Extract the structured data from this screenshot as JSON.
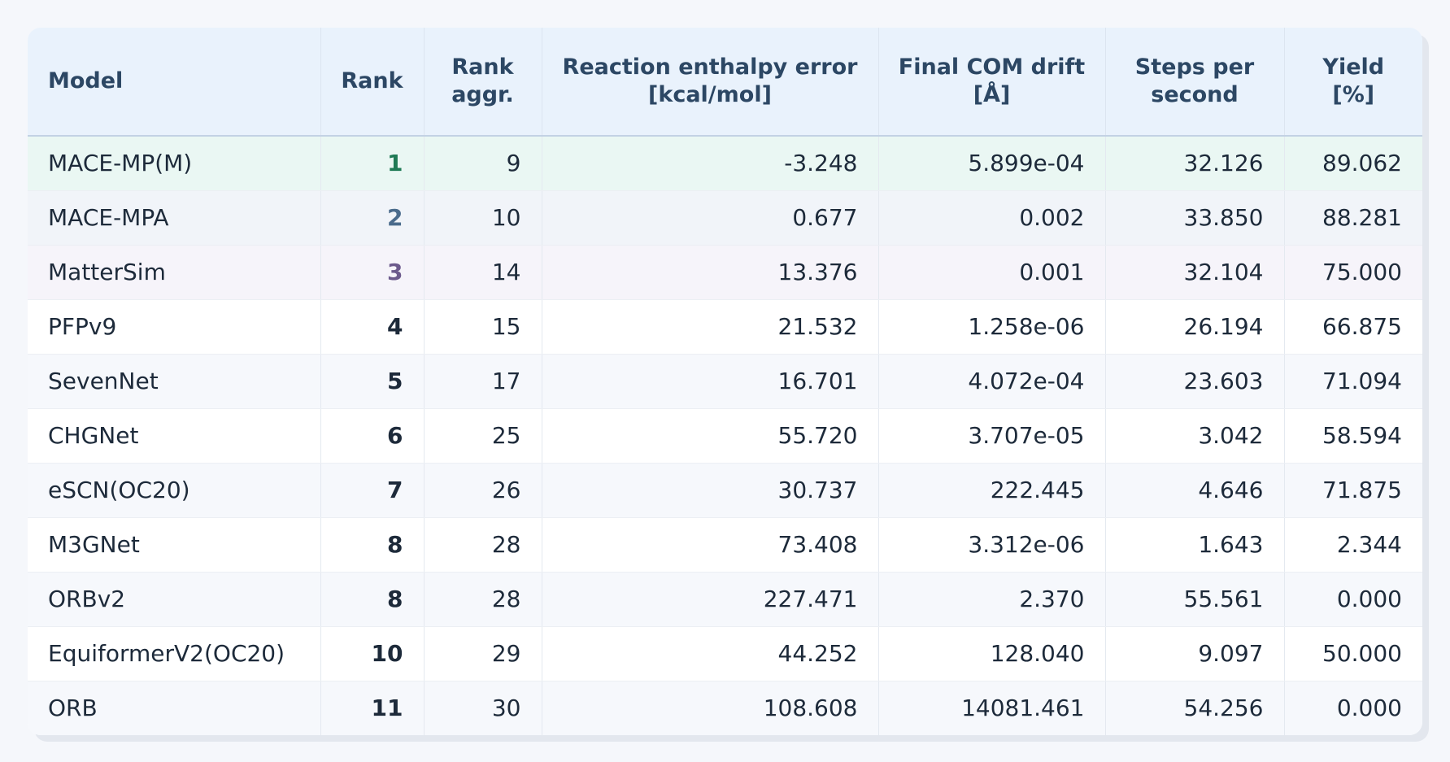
{
  "table": {
    "headers": [
      {
        "line1": "Model",
        "line2": ""
      },
      {
        "line1": "Rank",
        "line2": ""
      },
      {
        "line1": "Rank",
        "line2": "aggr."
      },
      {
        "line1": "Reaction enthalpy error",
        "line2": "[kcal/mol]"
      },
      {
        "line1": "Final COM drift",
        "line2": "[Å]"
      },
      {
        "line1": "Steps per",
        "line2": "second"
      },
      {
        "line1": "Yield",
        "line2": "[%]"
      }
    ],
    "rows": [
      {
        "model": "MACE-MP(M)",
        "rank": "1",
        "rank_aggr": "9",
        "enthalpy_error": "-3.248",
        "com_drift": "5.899e-04",
        "steps_per_second": "32.126",
        "yield": "89.062"
      },
      {
        "model": "MACE-MPA",
        "rank": "2",
        "rank_aggr": "10",
        "enthalpy_error": "0.677",
        "com_drift": "0.002",
        "steps_per_second": "33.850",
        "yield": "88.281"
      },
      {
        "model": "MatterSim",
        "rank": "3",
        "rank_aggr": "14",
        "enthalpy_error": "13.376",
        "com_drift": "0.001",
        "steps_per_second": "32.104",
        "yield": "75.000"
      },
      {
        "model": "PFPv9",
        "rank": "4",
        "rank_aggr": "15",
        "enthalpy_error": "21.532",
        "com_drift": "1.258e-06",
        "steps_per_second": "26.194",
        "yield": "66.875"
      },
      {
        "model": "SevenNet",
        "rank": "5",
        "rank_aggr": "17",
        "enthalpy_error": "16.701",
        "com_drift": "4.072e-04",
        "steps_per_second": "23.603",
        "yield": "71.094"
      },
      {
        "model": "CHGNet",
        "rank": "6",
        "rank_aggr": "25",
        "enthalpy_error": "55.720",
        "com_drift": "3.707e-05",
        "steps_per_second": "3.042",
        "yield": "58.594"
      },
      {
        "model": "eSCN(OC20)",
        "rank": "7",
        "rank_aggr": "26",
        "enthalpy_error": "30.737",
        "com_drift": "222.445",
        "steps_per_second": "4.646",
        "yield": "71.875"
      },
      {
        "model": "M3GNet",
        "rank": "8",
        "rank_aggr": "28",
        "enthalpy_error": "73.408",
        "com_drift": "3.312e-06",
        "steps_per_second": "1.643",
        "yield": "2.344"
      },
      {
        "model": "ORBv2",
        "rank": "8",
        "rank_aggr": "28",
        "enthalpy_error": "227.471",
        "com_drift": "2.370",
        "steps_per_second": "55.561",
        "yield": "0.000"
      },
      {
        "model": "EquiformerV2(OC20)",
        "rank": "10",
        "rank_aggr": "29",
        "enthalpy_error": "44.252",
        "com_drift": "128.040",
        "steps_per_second": "9.097",
        "yield": "50.000"
      },
      {
        "model": "ORB",
        "rank": "11",
        "rank_aggr": "30",
        "enthalpy_error": "108.608",
        "com_drift": "14081.461",
        "steps_per_second": "54.256",
        "yield": "0.000"
      }
    ]
  },
  "colors": {
    "header_bg": "#e9f2fc",
    "header_text": "#2c4764",
    "rank1": "#1f7a55",
    "rank2": "#4a6b8c",
    "rank3": "#6c5a8c",
    "rank1_row_bg": "#eaf7f3",
    "rank2_row_bg": "#f1f4f9",
    "rank3_row_bg": "#f6f4fa"
  }
}
